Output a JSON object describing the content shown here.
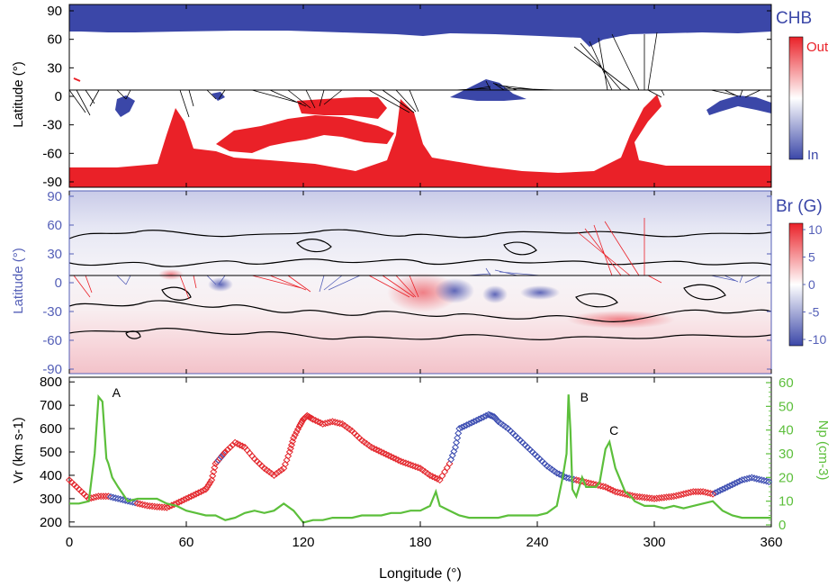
{
  "colors": {
    "coronal_hole_in": "#3b47a8",
    "coronal_hole_out": "#ea2128",
    "br_axis": "#5560b8",
    "np_line": "#5cbf3b",
    "vr_marker_red": "#e3252b",
    "vr_marker_blue": "#3a4bb0",
    "contour": "#000000"
  },
  "panel1": {
    "ylabel": "Latitude (°)",
    "colorbar_title": "CHB",
    "colorbar_top": "Out",
    "colorbar_bottom": "In",
    "yticks": [
      "90",
      "60",
      "30",
      "0",
      "-30",
      "-60",
      "-90"
    ]
  },
  "panel2": {
    "ylabel": "Latitude (°)",
    "colorbar_title": "Br (G)",
    "colorbar_ticks": [
      "10",
      "5",
      "0",
      "-5",
      "-10"
    ],
    "yticks": [
      "90",
      "60",
      "30",
      "0",
      "-30",
      "-60",
      "-90"
    ]
  },
  "panel3": {
    "ylabel_left": "Vr (km s-1)",
    "ylabel_right": "Np (cm-3)",
    "left_ticks": [
      "800",
      "700",
      "600",
      "500",
      "400",
      "300",
      "200"
    ],
    "right_ticks": [
      "60",
      "50",
      "40",
      "30",
      "20",
      "10",
      "0"
    ],
    "annotations": [
      "A",
      "B",
      "C"
    ]
  },
  "xaxis": {
    "label": "Longitude (°)",
    "ticks": [
      "0",
      "60",
      "120",
      "180",
      "240",
      "300",
      "360"
    ]
  },
  "chart_data": [
    {
      "type": "heatmap",
      "title": "CHB",
      "ylabel": "Latitude (°)",
      "xlabel": "Longitude (°)",
      "xlim": [
        0,
        360
      ],
      "ylim": [
        -90,
        90
      ],
      "colorbar": {
        "label": "CHB",
        "top": "Out",
        "bottom": "In"
      },
      "regions": [
        {
          "name": "In",
          "description": "northern polar coronal hole (blue)",
          "lat_range": [
            60,
            90
          ]
        },
        {
          "name": "Out",
          "description": "southern polar coronal hole (red)",
          "lat_range": [
            -90,
            -60
          ]
        }
      ]
    },
    {
      "type": "heatmap",
      "title": "Br (G)",
      "ylabel": "Latitude (°)",
      "xlabel": "Longitude (°)",
      "xlim": [
        0,
        360
      ],
      "ylim": [
        -90,
        90
      ],
      "colorbar": {
        "label": "Br (G)",
        "range": [
          -10,
          10
        ],
        "ticks": [
          10,
          5,
          0,
          -5,
          -10
        ]
      }
    },
    {
      "type": "line",
      "xlabel": "Longitude (°)",
      "xlim": [
        0,
        360
      ],
      "series": [
        {
          "name": "Np (cm-3)",
          "axis": "right",
          "ylim": [
            0,
            60
          ],
          "x": [
            0,
            5,
            10,
            13,
            15,
            17,
            18,
            19,
            20,
            22,
            25,
            30,
            35,
            40,
            45,
            50,
            55,
            60,
            65,
            70,
            75,
            80,
            85,
            90,
            95,
            100,
            105,
            110,
            115,
            120,
            125,
            130,
            135,
            140,
            145,
            150,
            155,
            160,
            165,
            170,
            175,
            180,
            185,
            188,
            190,
            195,
            200,
            205,
            210,
            215,
            220,
            225,
            230,
            235,
            240,
            245,
            250,
            253,
            255,
            256,
            257,
            258,
            260,
            263,
            265,
            270,
            272,
            275,
            277,
            280,
            283,
            285,
            288,
            290,
            295,
            300,
            305,
            310,
            315,
            320,
            325,
            330,
            335,
            340,
            345,
            350,
            355,
            360
          ],
          "y": [
            9,
            9,
            10,
            30,
            54,
            52,
            40,
            28,
            26,
            20,
            16,
            10,
            11,
            11,
            11,
            9,
            8,
            6,
            5,
            4,
            4,
            2,
            3,
            5,
            6,
            5,
            6,
            9,
            6,
            1,
            2,
            2,
            3,
            3,
            3,
            4,
            4,
            4,
            5,
            5,
            6,
            6,
            8,
            14,
            8,
            6,
            4,
            3,
            3,
            3,
            3,
            4,
            4,
            4,
            4,
            5,
            8,
            20,
            30,
            55,
            40,
            15,
            12,
            20,
            16,
            16,
            18,
            32,
            35,
            24,
            18,
            14,
            12,
            10,
            8,
            8,
            7,
            8,
            7,
            8,
            9,
            10,
            6,
            4,
            3,
            3,
            3,
            3
          ]
        },
        {
          "name": "Vr (km s-1)",
          "type": "scatter",
          "axis": "left",
          "ylim": [
            180,
            820
          ],
          "x": [
            0,
            5,
            10,
            15,
            20,
            25,
            30,
            35,
            40,
            45,
            50,
            55,
            60,
            65,
            70,
            73,
            75,
            78,
            80,
            85,
            90,
            95,
            100,
            105,
            110,
            113,
            115,
            118,
            120,
            122,
            125,
            130,
            135,
            140,
            145,
            150,
            155,
            160,
            165,
            170,
            175,
            180,
            185,
            190,
            195,
            198,
            200,
            205,
            210,
            215,
            218,
            220,
            225,
            230,
            235,
            240,
            245,
            250,
            255,
            260,
            265,
            270,
            275,
            280,
            285,
            290,
            295,
            300,
            305,
            310,
            315,
            320,
            325,
            330,
            335,
            340,
            345,
            350,
            355,
            360
          ],
          "y": [
            380,
            340,
            300,
            310,
            310,
            300,
            290,
            280,
            270,
            265,
            262,
            280,
            300,
            320,
            340,
            380,
            450,
            480,
            500,
            540,
            520,
            470,
            430,
            400,
            430,
            500,
            560,
            610,
            640,
            655,
            640,
            620,
            630,
            620,
            590,
            550,
            520,
            500,
            480,
            460,
            445,
            430,
            400,
            380,
            450,
            520,
            600,
            620,
            640,
            660,
            650,
            630,
            600,
            560,
            520,
            480,
            440,
            410,
            390,
            380,
            370,
            360,
            350,
            330,
            320,
            310,
            305,
            300,
            305,
            310,
            320,
            330,
            330,
            320,
            340,
            360,
            380,
            390,
            380,
            370
          ]
        }
      ],
      "y_left": {
        "label": "Vr (km s-1)",
        "ticks": [
          800,
          700,
          600,
          500,
          400,
          300,
          200
        ]
      },
      "y_right": {
        "label": "Np (cm-3)",
        "ticks": [
          60,
          50,
          40,
          30,
          20,
          10,
          0
        ]
      },
      "annotations": [
        {
          "text": "A",
          "x": 22,
          "y_right": 54
        },
        {
          "text": "B",
          "x": 262,
          "y_right": 52
        },
        {
          "text": "C",
          "x": 277,
          "y_right": 38
        }
      ]
    }
  ]
}
